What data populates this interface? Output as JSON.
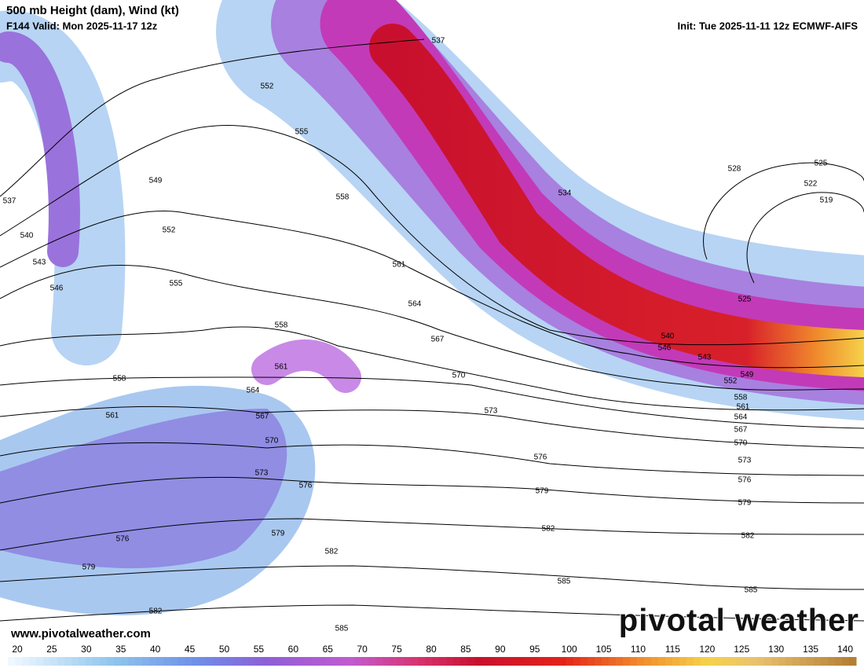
{
  "header": {
    "title": "500 mb Height (dam), Wind (kt)",
    "valid": "F144 Valid: Mon 2025-11-17 12z",
    "init": "Init: Tue 2025-11-11 12z ECMWF-AIFS"
  },
  "map": {
    "contour_labels": [
      537,
      552,
      555,
      549,
      537,
      540,
      552,
      543,
      546,
      555,
      558,
      561,
      564,
      558,
      567,
      561,
      570,
      564,
      558,
      567,
      561,
      573,
      570,
      573,
      576,
      576,
      579,
      576,
      579,
      582,
      582,
      579,
      582,
      585,
      585,
      534,
      528,
      525,
      522,
      519,
      525,
      540,
      546,
      543,
      549,
      552,
      558,
      561,
      564,
      567,
      570,
      573,
      576,
      579,
      582,
      585
    ]
  },
  "footer": {
    "url": "www.pivotalweather.com",
    "watermark": "pivotal weather"
  },
  "colorbar": {
    "ticks": [
      20,
      25,
      30,
      35,
      40,
      45,
      50,
      55,
      60,
      65,
      70,
      75,
      80,
      85,
      90,
      95,
      100,
      105,
      110,
      115,
      120,
      125,
      130,
      135,
      140
    ]
  }
}
